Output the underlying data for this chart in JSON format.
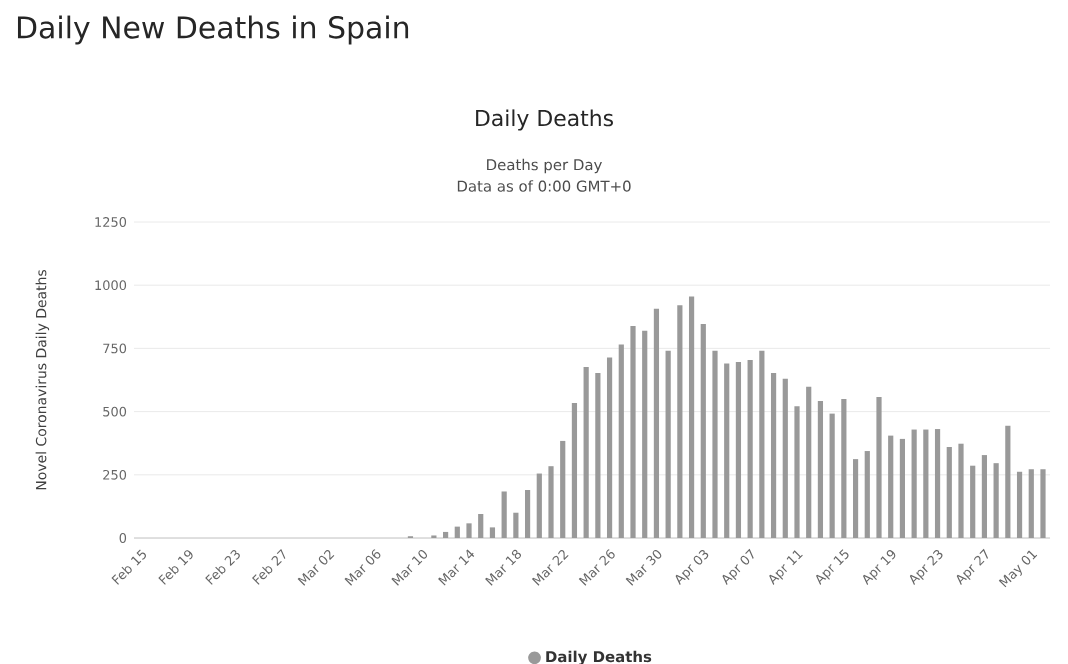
{
  "chart_data": {
    "type": "bar",
    "title": "Daily New Deaths in Spain",
    "subtitle": "Daily Deaths",
    "annotations": [
      "Deaths per Day",
      "Data as of 0:00 GMT+0"
    ],
    "ylabel": "Novel Coronavirus Daily Deaths",
    "categories": [
      "Feb 15",
      null,
      null,
      null,
      "Feb 19",
      null,
      null,
      null,
      "Feb 23",
      null,
      null,
      null,
      "Feb 27",
      null,
      null,
      null,
      "Mar 02",
      null,
      null,
      null,
      "Mar 06",
      null,
      null,
      null,
      "Mar 10",
      null,
      null,
      null,
      "Mar 14",
      null,
      null,
      null,
      "Mar 18",
      null,
      null,
      null,
      "Mar 22",
      null,
      null,
      null,
      "Mar 26",
      null,
      null,
      null,
      "Mar 30",
      null,
      null,
      null,
      "Apr 03",
      null,
      null,
      null,
      "Apr 07",
      null,
      null,
      null,
      "Apr 11",
      null,
      null,
      null,
      "Apr 15",
      null,
      null,
      null,
      "Apr 19",
      null,
      null,
      null,
      "Apr 23",
      null,
      null,
      null,
      "Apr 27",
      null,
      null,
      null,
      "May 01",
      null
    ],
    "series": [
      {
        "name": "Daily Deaths",
        "color": "#999999",
        "values": [
          0,
          0,
          0,
          0,
          0,
          0,
          0,
          0,
          0,
          0,
          0,
          0,
          0,
          0,
          0,
          0,
          0,
          0,
          0,
          0,
          0,
          0,
          0,
          7,
          null,
          10,
          24,
          45,
          58,
          95,
          42,
          184,
          100,
          190,
          255,
          284,
          384,
          534,
          676,
          653,
          714,
          765,
          839,
          820,
          907,
          741,
          921,
          955,
          847,
          741,
          690,
          696,
          704,
          741,
          653,
          630,
          521,
          598,
          542,
          492,
          550,
          312,
          344,
          558,
          405,
          392,
          429,
          429,
          431,
          360,
          373,
          286,
          328,
          296,
          444,
          262,
          272,
          272
        ]
      }
    ],
    "ylim": [
      0,
      1250
    ],
    "yticks": [
      0,
      250,
      500,
      750,
      1000,
      1250
    ],
    "grid": "y",
    "legend": "bottom"
  }
}
